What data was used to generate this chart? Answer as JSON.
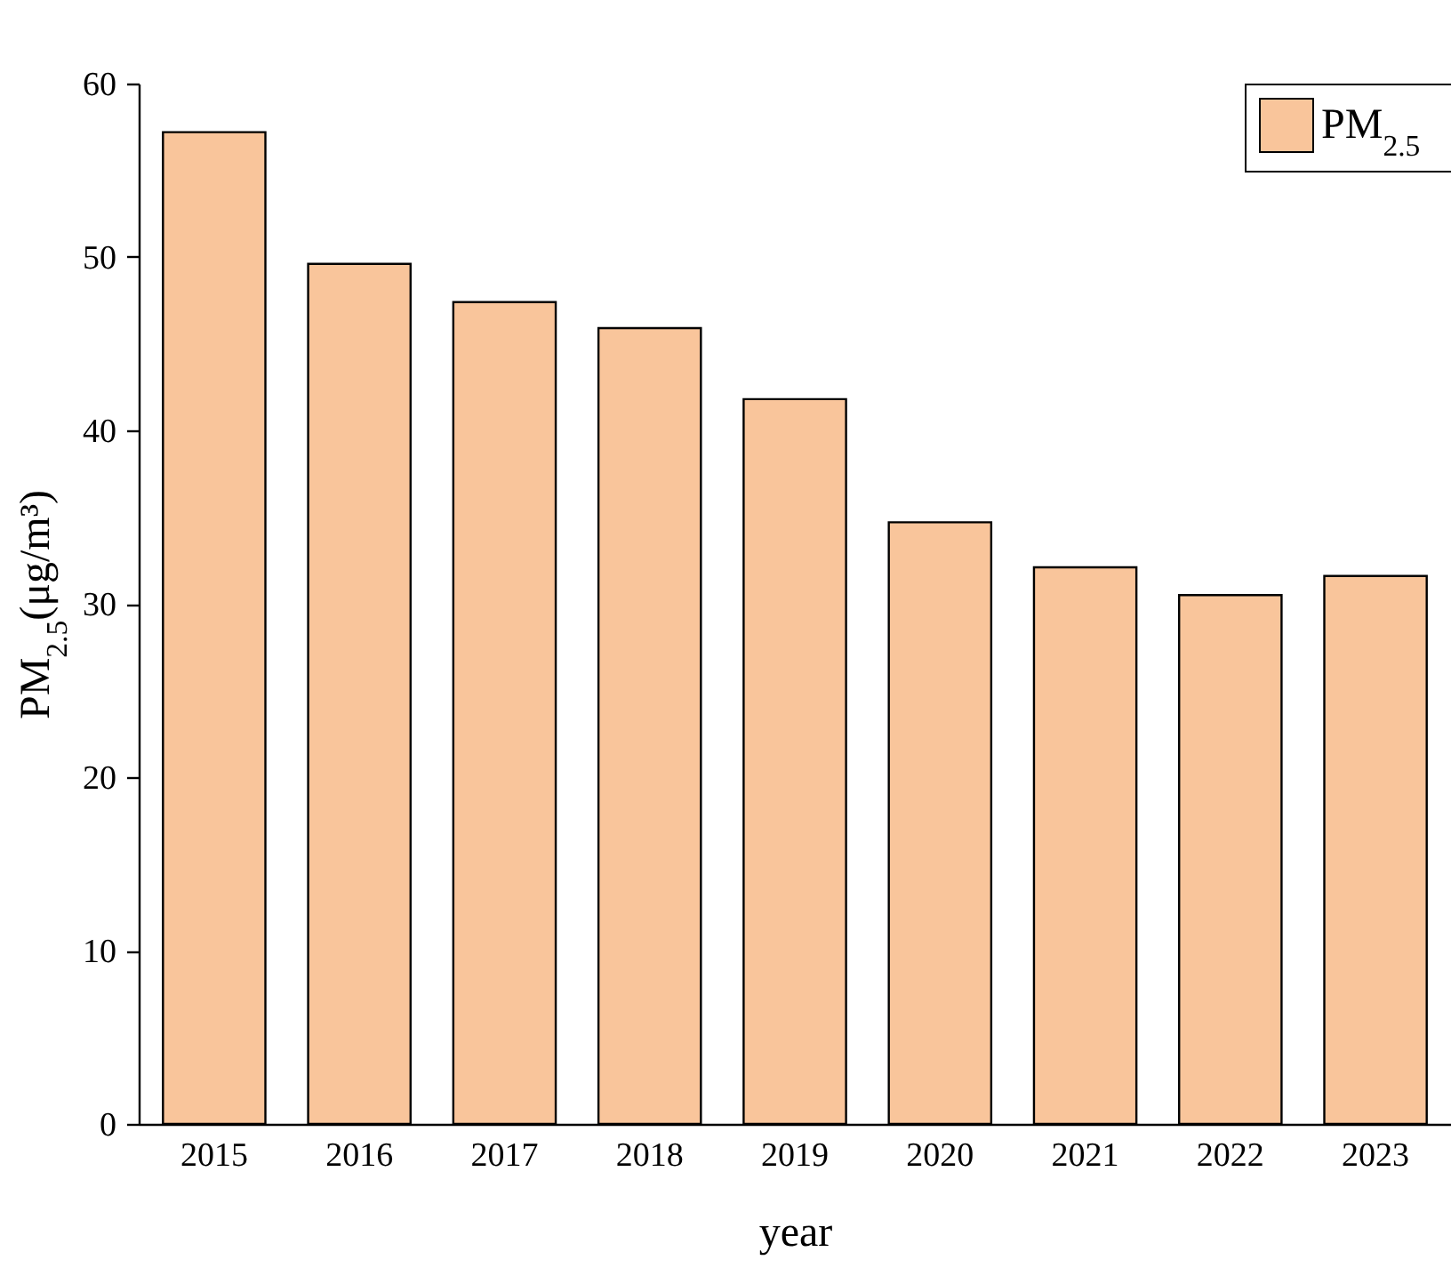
{
  "chart_data": {
    "type": "bar",
    "xlabel": "year",
    "ylabel": "PM$_{2.5}$(μg/m³)",
    "categories": [
      "2015",
      "2016",
      "2017",
      "2018",
      "2019",
      "2020",
      "2021",
      "2022",
      "2023"
    ],
    "series": [
      {
        "name": "PM$_{2.5}$",
        "color": "#f9c59b",
        "values": [
          57.2,
          49.6,
          47.4,
          45.9,
          41.8,
          34.7,
          32.1,
          30.5,
          31.6
        ]
      }
    ],
    "ylim": [
      0,
      60
    ],
    "yticks": [
      0,
      10,
      20,
      30,
      40,
      50,
      60
    ],
    "grid": false,
    "legend": "top right"
  }
}
